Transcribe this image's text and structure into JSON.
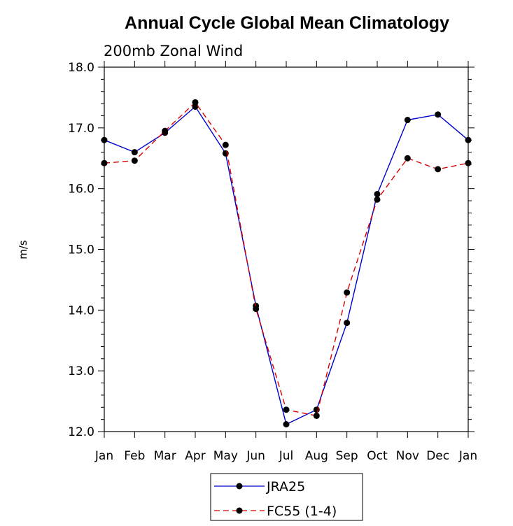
{
  "chart_data": {
    "type": "line",
    "title": "Annual Cycle Global Mean Climatology",
    "subtitle": "200mb Zonal Wind",
    "xlabel": "",
    "ylabel": "m/s",
    "categories": [
      "Jan",
      "Feb",
      "Mar",
      "Apr",
      "May",
      "Jun",
      "Jul",
      "Aug",
      "Sep",
      "Oct",
      "Nov",
      "Dec",
      "Jan"
    ],
    "ylim": [
      12.0,
      18.0
    ],
    "yticks": [
      "12.0",
      "13.0",
      "14.0",
      "15.0",
      "16.0",
      "17.0",
      "18.0"
    ],
    "legend_position": "bottom-center",
    "series": [
      {
        "name": "JRA25",
        "color": "#0000cc",
        "dash": "solid",
        "values": [
          16.8,
          16.6,
          16.92,
          17.35,
          16.58,
          14.07,
          12.12,
          12.36,
          13.79,
          15.91,
          17.13,
          17.22,
          16.8
        ]
      },
      {
        "name": "FC55 (1-4)",
        "color": "#dd0000",
        "dash": "dashed",
        "values": [
          16.42,
          16.46,
          16.95,
          17.42,
          16.72,
          14.02,
          12.36,
          12.26,
          14.29,
          15.82,
          16.5,
          16.32,
          16.42
        ]
      }
    ]
  }
}
